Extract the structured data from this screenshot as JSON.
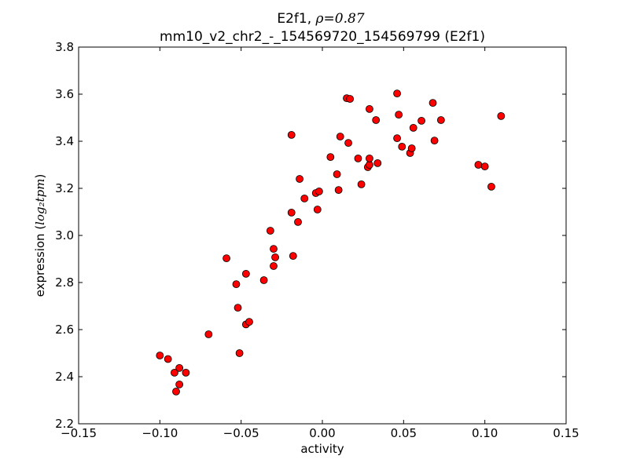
{
  "chart_data": {
    "type": "scatter",
    "title_line1_prefix": "E2f1, ",
    "title_line1_math": "ρ=0.87",
    "title_line2": "mm10_v2_chr2_-_154569720_154569799 (E2f1)",
    "xlabel": "activity",
    "ylabel_prefix": "expression (",
    "ylabel_math": "log₂tpm",
    "ylabel_suffix": ")",
    "xlim": [
      -0.15,
      0.15
    ],
    "ylim": [
      2.2,
      3.8
    ],
    "xticks": [
      -0.15,
      -0.1,
      -0.05,
      0.0,
      0.05,
      0.1,
      0.15
    ],
    "xtick_labels": [
      "−0.15",
      "−0.10",
      "−0.05",
      "0.00",
      "0.05",
      "0.10",
      "0.15"
    ],
    "yticks": [
      2.2,
      2.4,
      2.6,
      2.8,
      3.0,
      3.2,
      3.4,
      3.6,
      3.8
    ],
    "ytick_labels": [
      "2.2",
      "2.4",
      "2.6",
      "2.8",
      "3.0",
      "3.2",
      "3.4",
      "3.6",
      "3.8"
    ],
    "grid": false,
    "marker_color": "#ff0000",
    "marker_edge": "#000000",
    "points": [
      {
        "x": -0.1,
        "y": 2.49
      },
      {
        "x": -0.095,
        "y": 2.475
      },
      {
        "x": -0.091,
        "y": 2.417
      },
      {
        "x": -0.088,
        "y": 2.437
      },
      {
        "x": -0.084,
        "y": 2.417
      },
      {
        "x": -0.088,
        "y": 2.367
      },
      {
        "x": -0.09,
        "y": 2.337
      },
      {
        "x": -0.07,
        "y": 2.58
      },
      {
        "x": -0.059,
        "y": 2.903
      },
      {
        "x": -0.053,
        "y": 2.793
      },
      {
        "x": -0.052,
        "y": 2.693
      },
      {
        "x": -0.051,
        "y": 2.5
      },
      {
        "x": -0.047,
        "y": 2.837
      },
      {
        "x": -0.047,
        "y": 2.622
      },
      {
        "x": -0.045,
        "y": 2.633
      },
      {
        "x": -0.036,
        "y": 2.81
      },
      {
        "x": -0.032,
        "y": 3.02
      },
      {
        "x": -0.03,
        "y": 2.943
      },
      {
        "x": -0.029,
        "y": 2.907
      },
      {
        "x": -0.03,
        "y": 2.87
      },
      {
        "x": -0.019,
        "y": 3.427
      },
      {
        "x": -0.019,
        "y": 3.097
      },
      {
        "x": -0.018,
        "y": 2.913
      },
      {
        "x": -0.015,
        "y": 3.057
      },
      {
        "x": -0.014,
        "y": 3.24
      },
      {
        "x": -0.011,
        "y": 3.157
      },
      {
        "x": -0.004,
        "y": 3.18
      },
      {
        "x": -0.002,
        "y": 3.187
      },
      {
        "x": -0.003,
        "y": 3.11
      },
      {
        "x": 0.005,
        "y": 3.333
      },
      {
        "x": 0.009,
        "y": 3.26
      },
      {
        "x": 0.011,
        "y": 3.42
      },
      {
        "x": 0.01,
        "y": 3.193
      },
      {
        "x": 0.015,
        "y": 3.583
      },
      {
        "x": 0.017,
        "y": 3.58
      },
      {
        "x": 0.016,
        "y": 3.393
      },
      {
        "x": 0.022,
        "y": 3.327
      },
      {
        "x": 0.024,
        "y": 3.217
      },
      {
        "x": 0.028,
        "y": 3.29
      },
      {
        "x": 0.029,
        "y": 3.3
      },
      {
        "x": 0.029,
        "y": 3.327
      },
      {
        "x": 0.029,
        "y": 3.537
      },
      {
        "x": 0.033,
        "y": 3.49
      },
      {
        "x": 0.034,
        "y": 3.307
      },
      {
        "x": 0.046,
        "y": 3.603
      },
      {
        "x": 0.046,
        "y": 3.413
      },
      {
        "x": 0.047,
        "y": 3.513
      },
      {
        "x": 0.049,
        "y": 3.377
      },
      {
        "x": 0.054,
        "y": 3.35
      },
      {
        "x": 0.055,
        "y": 3.37
      },
      {
        "x": 0.056,
        "y": 3.457
      },
      {
        "x": 0.061,
        "y": 3.487
      },
      {
        "x": 0.068,
        "y": 3.563
      },
      {
        "x": 0.069,
        "y": 3.403
      },
      {
        "x": 0.073,
        "y": 3.49
      },
      {
        "x": 0.096,
        "y": 3.3
      },
      {
        "x": 0.1,
        "y": 3.293
      },
      {
        "x": 0.104,
        "y": 3.207
      },
      {
        "x": 0.11,
        "y": 3.507
      }
    ]
  }
}
